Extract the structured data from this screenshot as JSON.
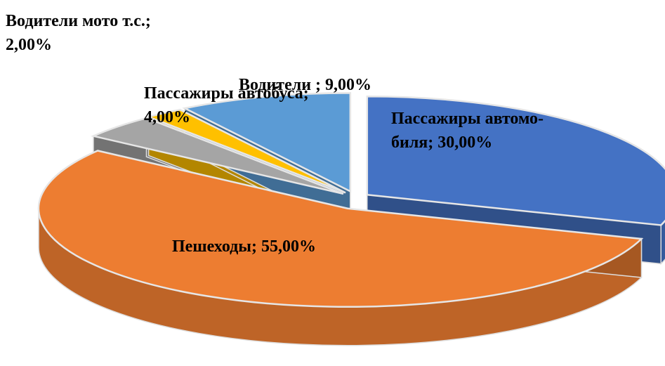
{
  "chart_data": {
    "type": "pie3d",
    "values": [
      30,
      55,
      4,
      2,
      9
    ],
    "value_labels": [
      "Пассажиры автомо-\nбиля; 30,00%",
      "Пешеходы; 55,00%",
      "Пассажиры автобуса;\n4,00%",
      "Водители мото т.с.;\n2,00%",
      "Водители ; 9,00%"
    ],
    "colors": [
      "#4472c4",
      "#ed7d31",
      "#a5a5a5",
      "#ffc000",
      "#5b9bd5"
    ]
  }
}
